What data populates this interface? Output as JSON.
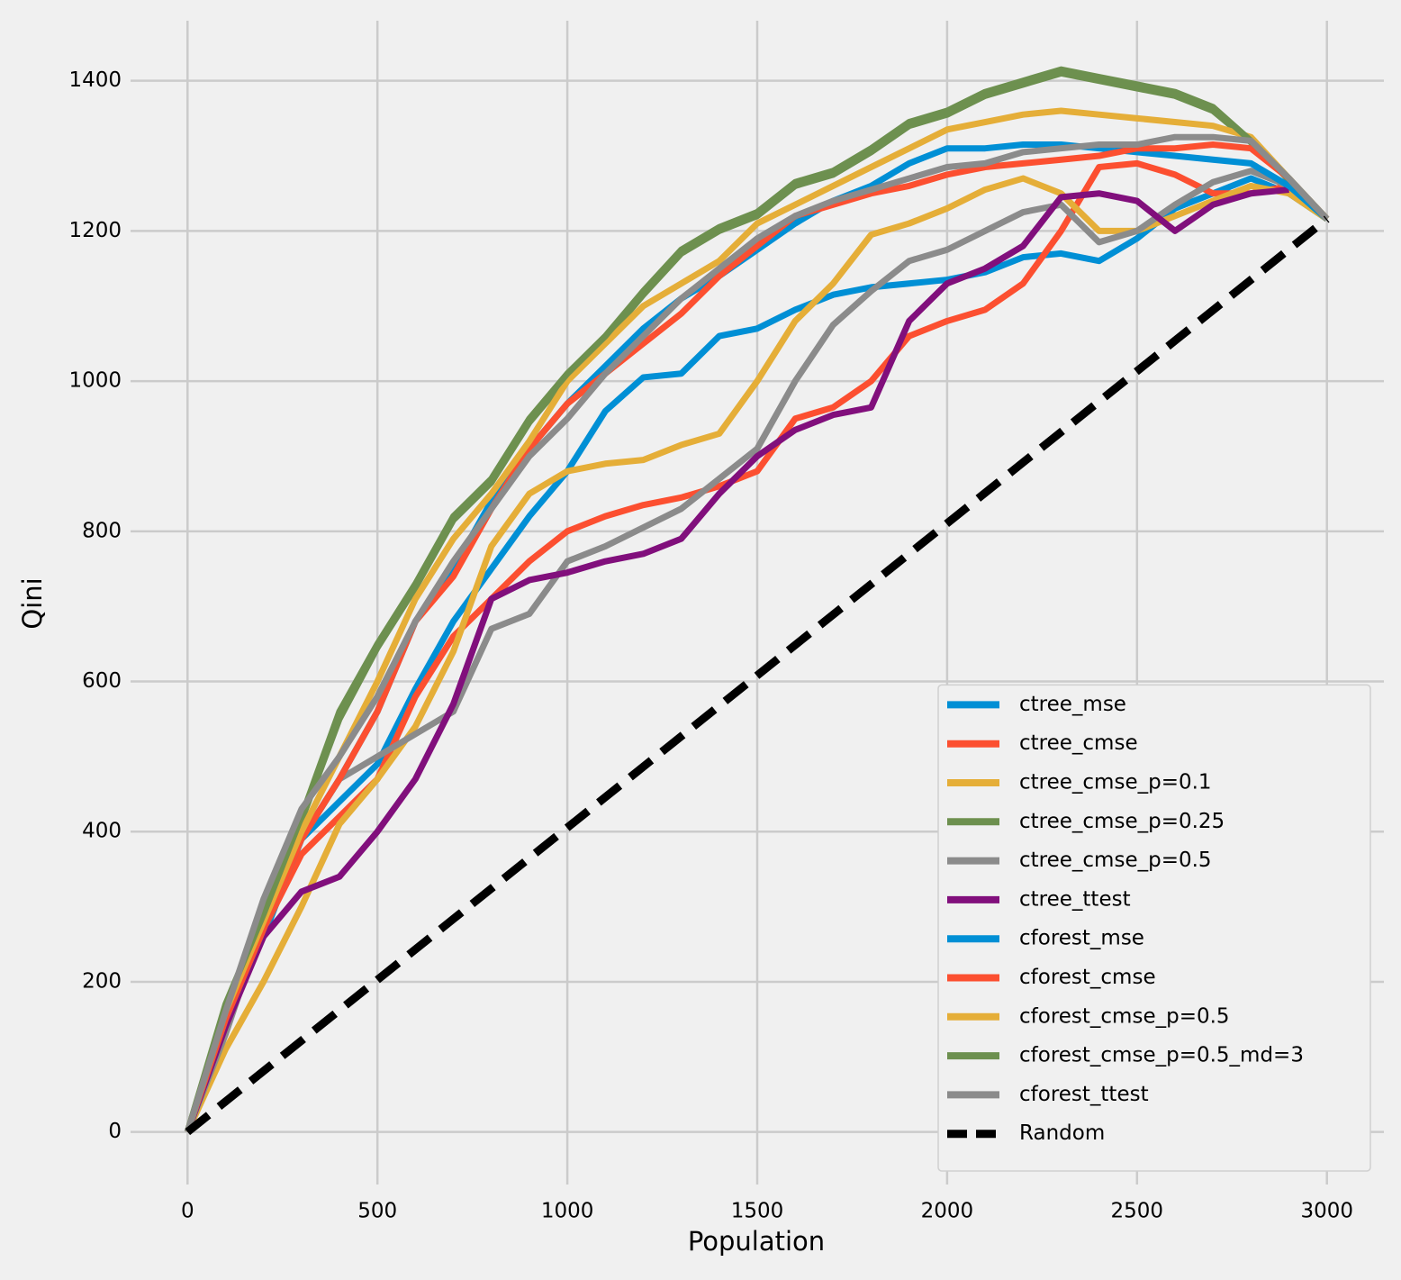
{
  "chart_data": {
    "type": "line",
    "xlabel": "Population",
    "ylabel": "Qini",
    "x": [
      0,
      100,
      200,
      300,
      400,
      500,
      600,
      700,
      800,
      900,
      1000,
      1100,
      1200,
      1300,
      1400,
      1500,
      1600,
      1700,
      1800,
      1900,
      2000,
      2100,
      2200,
      2300,
      2400,
      2500,
      2600,
      2700,
      2800,
      2900,
      3000
    ],
    "series": [
      {
        "name": "ctree_mse",
        "color": "#008fd5",
        "values": [
          0,
          150,
          260,
          390,
          440,
          490,
          590,
          680,
          750,
          820,
          880,
          960,
          1005,
          1010,
          1060,
          1070,
          1095,
          1115,
          1125,
          1130,
          1135,
          1145,
          1165,
          1170,
          1160,
          1190,
          1230,
          1250,
          1270,
          1250,
          1216
        ]
      },
      {
        "name": "ctree_cmse",
        "color": "#fc4f30",
        "values": [
          0,
          140,
          270,
          370,
          420,
          470,
          580,
          660,
          710,
          760,
          800,
          820,
          835,
          845,
          860,
          880,
          950,
          965,
          1000,
          1060,
          1080,
          1095,
          1130,
          1200,
          1285,
          1290,
          1275,
          1250,
          1250,
          1260,
          1216
        ]
      },
      {
        "name": "ctree_cmse_p=0.1",
        "color": "#e5ae38",
        "values": [
          0,
          110,
          200,
          300,
          410,
          470,
          540,
          640,
          780,
          850,
          880,
          890,
          895,
          915,
          930,
          1000,
          1080,
          1130,
          1195,
          1210,
          1230,
          1255,
          1270,
          1250,
          1200,
          1200,
          1220,
          1240,
          1260,
          1250,
          1216
        ]
      },
      {
        "name": "ctree_cmse_p=0.25",
        "color": "#6d904f",
        "values": [
          0,
          165,
          285,
          415,
          550,
          645,
          725,
          815,
          865,
          945,
          1005,
          1055,
          1115,
          1170,
          1200,
          1220,
          1260,
          1275,
          1305,
          1340,
          1355,
          1380,
          1395,
          1410,
          1400,
          1390,
          1380,
          1360,
          1318,
          1268,
          1216
        ]
      },
      {
        "name": "ctree_cmse_p=0.5",
        "color": "#8b8b8b",
        "values": [
          0,
          130,
          280,
          390,
          470,
          500,
          530,
          560,
          670,
          690,
          760,
          780,
          805,
          830,
          870,
          910,
          1000,
          1075,
          1120,
          1160,
          1175,
          1200,
          1225,
          1235,
          1185,
          1200,
          1235,
          1265,
          1280,
          1260,
          1216
        ]
      },
      {
        "name": "ctree_ttest",
        "color": "#810f7c",
        "values": [
          0,
          140,
          260,
          320,
          340,
          400,
          470,
          570,
          710,
          735,
          745,
          760,
          770,
          790,
          850,
          900,
          935,
          955,
          965,
          1080,
          1130,
          1150,
          1180,
          1245,
          1250,
          1240,
          1200,
          1235,
          1250,
          1255,
          null
        ]
      },
      {
        "name": "cforest_mse",
        "color": "#008fd5",
        "values": [
          0,
          150,
          270,
          390,
          470,
          560,
          680,
          750,
          840,
          910,
          970,
          1020,
          1070,
          1110,
          1140,
          1175,
          1210,
          1240,
          1260,
          1290,
          1310,
          1310,
          1315,
          1315,
          1310,
          1305,
          1300,
          1295,
          1290,
          1260,
          1216
        ]
      },
      {
        "name": "cforest_cmse",
        "color": "#fc4f30",
        "values": [
          0,
          150,
          270,
          390,
          470,
          560,
          680,
          740,
          830,
          910,
          970,
          1010,
          1050,
          1090,
          1140,
          1180,
          1220,
          1235,
          1250,
          1260,
          1275,
          1285,
          1290,
          1295,
          1300,
          1310,
          1310,
          1315,
          1310,
          1270,
          1216
        ]
      },
      {
        "name": "cforest_cmse_p=0.5",
        "color": "#e5ae38",
        "values": [
          0,
          160,
          280,
          400,
          500,
          600,
          710,
          790,
          850,
          920,
          1000,
          1050,
          1100,
          1130,
          1160,
          1210,
          1235,
          1260,
          1285,
          1310,
          1335,
          1345,
          1355,
          1360,
          1355,
          1350,
          1345,
          1340,
          1325,
          1270,
          1216
        ]
      },
      {
        "name": "cforest_cmse_p=0.5_md=3",
        "color": "#6d904f",
        "values": [
          0,
          170,
          290,
          420,
          560,
          650,
          730,
          820,
          870,
          950,
          1010,
          1060,
          1120,
          1175,
          1205,
          1225,
          1265,
          1280,
          1310,
          1345,
          1360,
          1385,
          1400,
          1415,
          1405,
          1395,
          1385,
          1365,
          1320,
          1270,
          1216
        ]
      },
      {
        "name": "cforest_ttest",
        "color": "#8b8b8b",
        "values": [
          0,
          160,
          310,
          430,
          500,
          580,
          680,
          760,
          830,
          900,
          950,
          1010,
          1060,
          1110,
          1150,
          1190,
          1220,
          1240,
          1255,
          1270,
          1285,
          1290,
          1305,
          1310,
          1315,
          1315,
          1325,
          1325,
          1320,
          1270,
          1216
        ]
      },
      {
        "name": "Random",
        "color": "#000000",
        "dashed": true,
        "x": [
          0,
          3000
        ],
        "values": [
          0,
          1216
        ]
      }
    ],
    "xlim": [
      -150,
      3150
    ],
    "xticks": [
      0,
      500,
      1000,
      1500,
      2000,
      2500,
      3000
    ],
    "ylim": [
      -70,
      1480
    ],
    "yticks": [
      0,
      200,
      400,
      600,
      800,
      1000,
      1200,
      1400
    ],
    "grid": true,
    "legend": "lower right"
  }
}
